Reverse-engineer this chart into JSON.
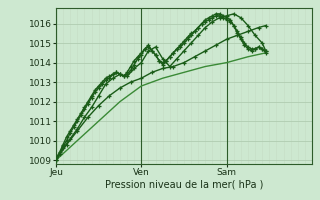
{
  "bg_color": "#cde8d0",
  "grid_color_major": "#b0ccb0",
  "grid_color_minor": "#c5ddc5",
  "line_color_dark": "#1a5c18",
  "line_color_light": "#3a8a36",
  "xlim": [
    0,
    72
  ],
  "ylim": [
    1008.8,
    1016.8
  ],
  "yticks": [
    1009,
    1010,
    1011,
    1012,
    1013,
    1014,
    1015,
    1016
  ],
  "vline_x": [
    0,
    24,
    48
  ],
  "xtick_positions": [
    0,
    24,
    48
  ],
  "xtick_labels": [
    "Jeu",
    "Ven",
    "Sam"
  ],
  "xlabel": "Pression niveau de la mer( hPa )",
  "series": [
    {
      "x": [
        0,
        1,
        2,
        3,
        4,
        5,
        6,
        7,
        8,
        9,
        10,
        11,
        12,
        13,
        14,
        15,
        16,
        17,
        18,
        19,
        20,
        21,
        22,
        23,
        24,
        25,
        26,
        27,
        28,
        29,
        30,
        31,
        32,
        33,
        34,
        35,
        36,
        37,
        38,
        39,
        40,
        41,
        42,
        43,
        44,
        45,
        46,
        47,
        48,
        49,
        50,
        51,
        52,
        53,
        54,
        55,
        56,
        57,
        58,
        59
      ],
      "y": [
        1009.0,
        1009.3,
        1009.7,
        1010.0,
        1010.4,
        1010.7,
        1011.0,
        1011.3,
        1011.6,
        1011.9,
        1012.2,
        1012.5,
        1012.7,
        1012.9,
        1013.1,
        1013.2,
        1013.4,
        1013.5,
        1013.4,
        1013.3,
        1013.4,
        1013.6,
        1013.9,
        1014.2,
        1014.4,
        1014.7,
        1014.8,
        1014.6,
        1014.4,
        1014.1,
        1014.0,
        1014.1,
        1014.3,
        1014.5,
        1014.7,
        1014.9,
        1015.1,
        1015.3,
        1015.5,
        1015.6,
        1015.8,
        1016.0,
        1016.1,
        1016.2,
        1016.3,
        1016.4,
        1016.4,
        1016.3,
        1016.2,
        1016.1,
        1015.9,
        1015.6,
        1015.3,
        1015.0,
        1014.8,
        1014.7,
        1014.7,
        1014.8,
        1014.7,
        1014.6
      ],
      "marker": true,
      "lw": 1.0,
      "color": "dark"
    },
    {
      "x": [
        0,
        1,
        2,
        3,
        4,
        5,
        6,
        7,
        8,
        9,
        10,
        11,
        12,
        13,
        14,
        15,
        16,
        17,
        18,
        19,
        20,
        21,
        22,
        23,
        24,
        25,
        26,
        27,
        28,
        29,
        30,
        31,
        32,
        33,
        34,
        35,
        36,
        37,
        38,
        39,
        40,
        41,
        42,
        43,
        44,
        45,
        46,
        47,
        48,
        49,
        50,
        51,
        52,
        53,
        54,
        55,
        56,
        57,
        58,
        59
      ],
      "y": [
        1009.1,
        1009.4,
        1009.8,
        1010.2,
        1010.5,
        1010.8,
        1011.1,
        1011.4,
        1011.7,
        1012.0,
        1012.3,
        1012.6,
        1012.8,
        1013.0,
        1013.2,
        1013.3,
        1013.4,
        1013.5,
        1013.4,
        1013.3,
        1013.5,
        1013.8,
        1014.1,
        1014.3,
        1014.5,
        1014.7,
        1014.9,
        1014.6,
        1014.4,
        1014.1,
        1013.9,
        1014.1,
        1014.3,
        1014.5,
        1014.7,
        1014.8,
        1015.0,
        1015.2,
        1015.4,
        1015.6,
        1015.8,
        1016.0,
        1016.2,
        1016.3,
        1016.4,
        1016.5,
        1016.5,
        1016.4,
        1016.3,
        1016.2,
        1015.9,
        1015.5,
        1015.2,
        1014.9,
        1014.7,
        1014.6,
        1014.7,
        1014.8,
        1014.7,
        1014.5
      ],
      "marker": true,
      "lw": 1.0,
      "color": "dark"
    },
    {
      "x": [
        0,
        2,
        4,
        6,
        8,
        10,
        12,
        14,
        16,
        18,
        20,
        22,
        24,
        26,
        28,
        30,
        32,
        34,
        36,
        38,
        40,
        42,
        44,
        46,
        48,
        50,
        52,
        54,
        56,
        58,
        59
      ],
      "y": [
        1009.0,
        1009.6,
        1010.1,
        1010.6,
        1011.2,
        1011.7,
        1012.3,
        1012.9,
        1013.2,
        1013.4,
        1013.3,
        1013.7,
        1014.0,
        1014.6,
        1014.8,
        1014.2,
        1013.8,
        1014.2,
        1014.6,
        1015.0,
        1015.4,
        1015.8,
        1016.1,
        1016.3,
        1016.4,
        1016.5,
        1016.3,
        1015.9,
        1015.4,
        1015.0,
        1014.6
      ],
      "marker": true,
      "lw": 1.0,
      "color": "dark"
    },
    {
      "x": [
        0,
        3,
        6,
        9,
        12,
        15,
        18,
        21,
        24,
        27,
        30,
        33,
        36,
        39,
        42,
        45,
        48,
        51,
        54,
        57,
        59
      ],
      "y": [
        1009.0,
        1009.8,
        1010.5,
        1011.2,
        1011.8,
        1012.3,
        1012.7,
        1013.0,
        1013.2,
        1013.5,
        1013.7,
        1013.8,
        1014.0,
        1014.3,
        1014.6,
        1014.9,
        1015.2,
        1015.4,
        1015.6,
        1015.8,
        1015.9
      ],
      "marker": true,
      "lw": 1.0,
      "color": "dark"
    },
    {
      "x": [
        0,
        6,
        12,
        18,
        24,
        30,
        36,
        42,
        48,
        54,
        59
      ],
      "y": [
        1009.0,
        1010.0,
        1011.0,
        1012.0,
        1012.8,
        1013.2,
        1013.5,
        1013.8,
        1014.0,
        1014.3,
        1014.5
      ],
      "marker": false,
      "lw": 1.0,
      "color": "light"
    }
  ]
}
